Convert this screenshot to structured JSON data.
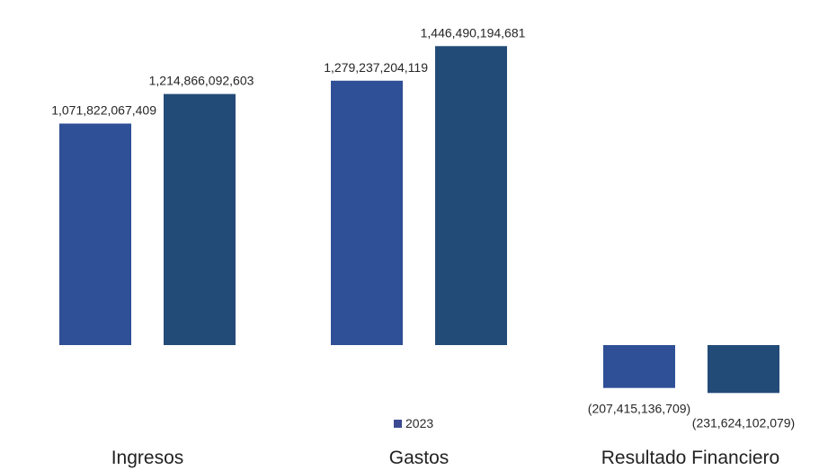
{
  "chart_data": {
    "type": "bar",
    "categories": [
      "Ingresos",
      "Gastos",
      "Resultado Financiero"
    ],
    "series": [
      {
        "name": "",
        "values": [
          1071822067409,
          1279237204119,
          -207415136709
        ],
        "labels": [
          "1,071,822,067,409",
          "1,279,237,204,119",
          "(207,415,136,709)"
        ],
        "color": "#2f4f96"
      },
      {
        "name": "2023",
        "values": [
          1214866092603,
          1446490194681,
          -231624102079
        ],
        "labels": [
          "1,214,866,092,603",
          "1,446,490,194,681",
          "(231,624,102,079)"
        ],
        "color": "#234b78"
      }
    ],
    "legend": {
      "position": "bottom",
      "label": "2023",
      "marker_color": "#3b4a91"
    },
    "grid": false,
    "ylim": [
      -260000000000,
      1500000000000
    ]
  }
}
